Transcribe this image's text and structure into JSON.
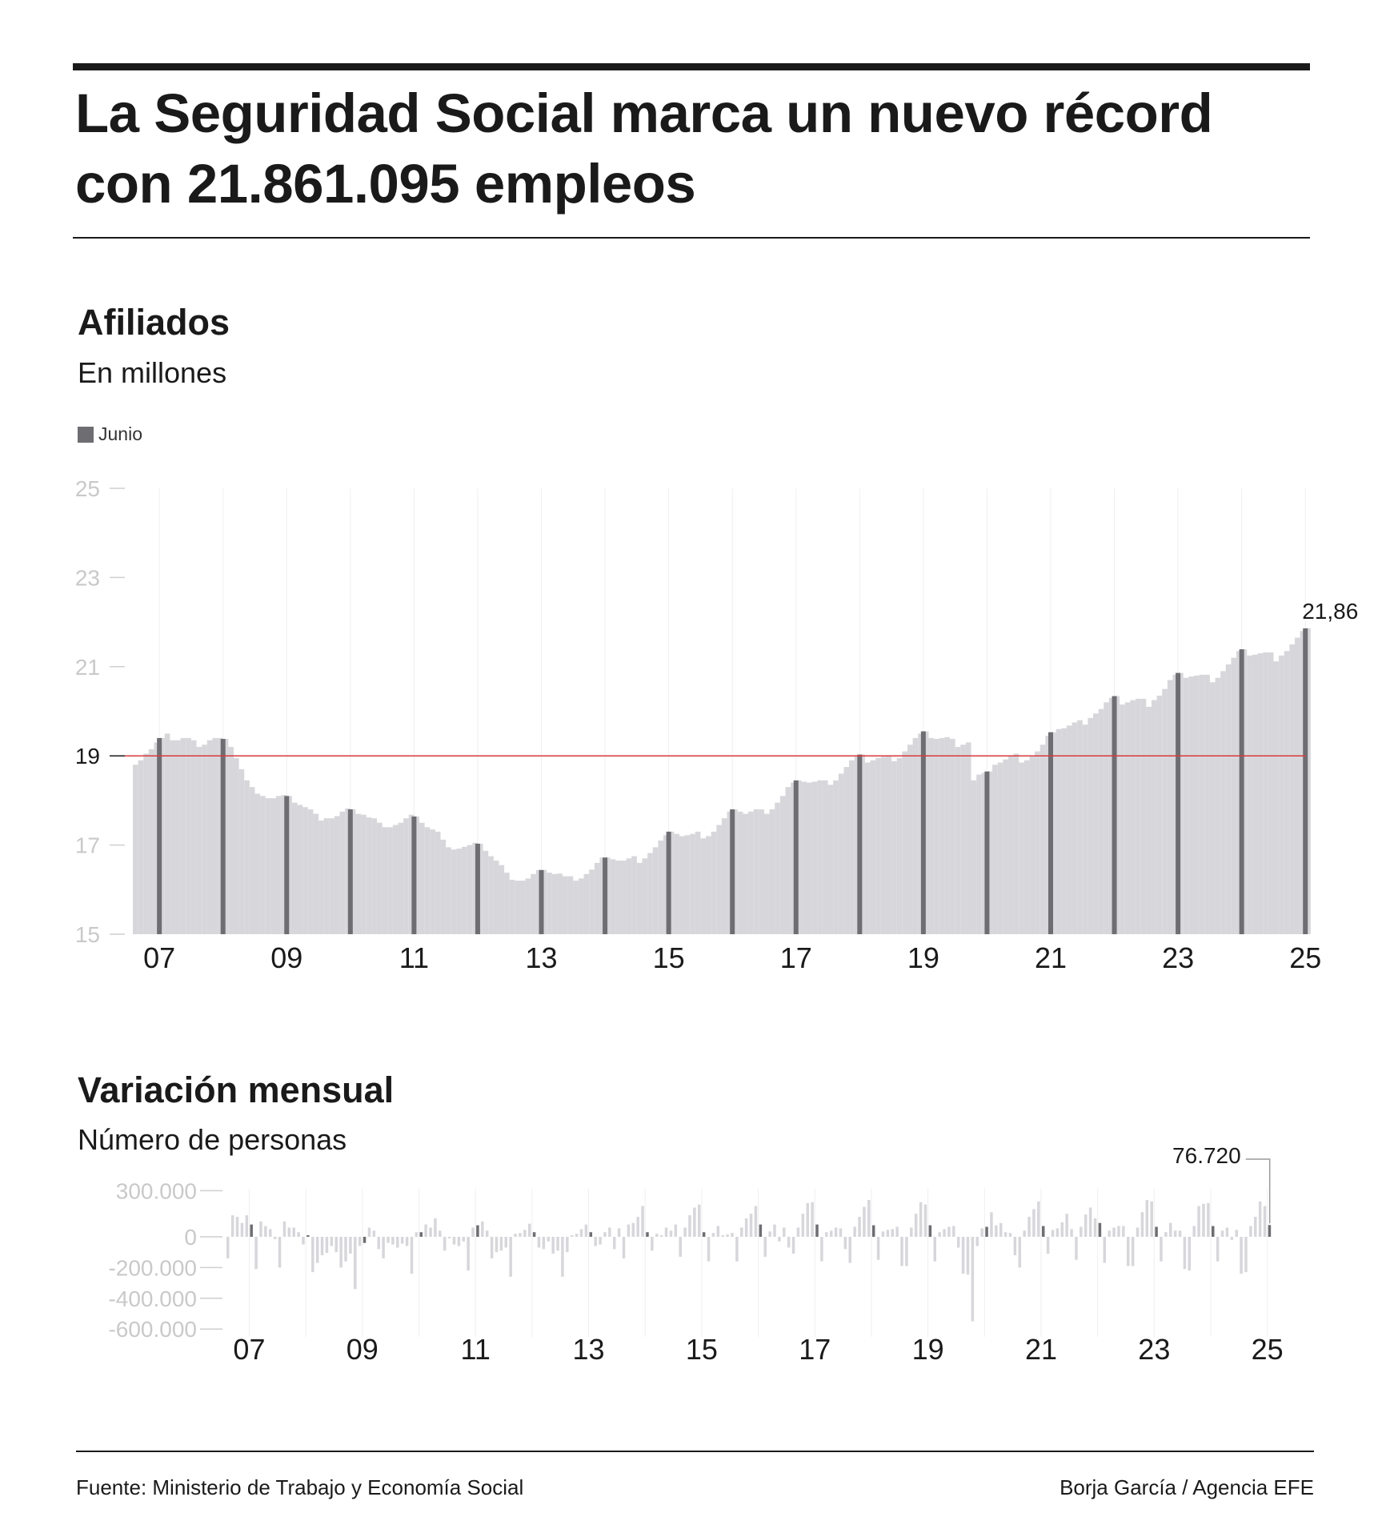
{
  "header": {
    "title": "La Seguridad Social marca un nuevo récord con 21.861.095 empleos"
  },
  "affiliates_section": {
    "title": "Afiliados",
    "subtitle": "En millones",
    "legend_label": "Junio"
  },
  "variation_section": {
    "title": "Variación mensual",
    "subtitle": "Número de personas"
  },
  "footer": {
    "source": "Fuente: Ministerio de Trabajo y Economía Social",
    "credit": "Borja García / Agencia EFE"
  },
  "colors": {
    "bar_light": "#d7d7db",
    "bar_highlight": "#6e6e72",
    "reference_line": "#d9393c",
    "axis_label": "#c9c9c9",
    "gridline": "#efefef"
  },
  "chart_data": [
    {
      "type": "bar",
      "title": "Afiliados",
      "subtitle": "En millones",
      "legend": [
        {
          "name": "Junio",
          "color": "#6e6e72"
        }
      ],
      "x_ticks": [
        "07",
        "09",
        "11",
        "13",
        "15",
        "17",
        "19",
        "21",
        "23",
        "25"
      ],
      "y_ticks": [
        15,
        17,
        19,
        21,
        23,
        25
      ],
      "ylim": [
        15,
        25
      ],
      "reference_line": 19,
      "first_month": "2007-01",
      "highlight_month": "June",
      "june_values": [
        {
          "year": "2007",
          "value": 19.4
        },
        {
          "year": "2008",
          "value": 19.38
        },
        {
          "year": "2009",
          "value": 18.1
        },
        {
          "year": "2010",
          "value": 17.8
        },
        {
          "year": "2011",
          "value": 17.64
        },
        {
          "year": "2012",
          "value": 17.03
        },
        {
          "year": "2013",
          "value": 16.44
        },
        {
          "year": "2014",
          "value": 16.72
        },
        {
          "year": "2015",
          "value": 17.3
        },
        {
          "year": "2016",
          "value": 17.8
        },
        {
          "year": "2017",
          "value": 18.45
        },
        {
          "year": "2018",
          "value": 19.03
        },
        {
          "year": "2019",
          "value": 19.55
        },
        {
          "year": "2020",
          "value": 18.65
        },
        {
          "year": "2021",
          "value": 19.53
        },
        {
          "year": "2022",
          "value": 20.34
        },
        {
          "year": "2023",
          "value": 20.86
        },
        {
          "year": "2024",
          "value": 21.39
        },
        {
          "year": "2025",
          "value": 21.86
        }
      ],
      "monthly_values": [
        18.8,
        18.9,
        19.05,
        19.15,
        19.3,
        19.4,
        19.5,
        19.35,
        19.35,
        19.4,
        19.4,
        19.35,
        19.2,
        19.25,
        19.35,
        19.4,
        19.4,
        19.38,
        19.2,
        18.95,
        18.7,
        18.45,
        18.3,
        18.15,
        18.1,
        18.05,
        18.05,
        18.1,
        18.12,
        18.1,
        17.95,
        17.9,
        17.85,
        17.8,
        17.7,
        17.55,
        17.6,
        17.6,
        17.65,
        17.75,
        17.82,
        17.8,
        17.7,
        17.68,
        17.62,
        17.6,
        17.5,
        17.4,
        17.4,
        17.45,
        17.5,
        17.6,
        17.68,
        17.64,
        17.5,
        17.4,
        17.35,
        17.3,
        17.12,
        16.95,
        16.9,
        16.92,
        16.96,
        17.0,
        17.05,
        17.03,
        16.87,
        16.75,
        16.65,
        16.55,
        16.38,
        16.22,
        16.2,
        16.2,
        16.25,
        16.35,
        16.44,
        16.44,
        16.38,
        16.35,
        16.36,
        16.3,
        16.3,
        16.2,
        16.25,
        16.35,
        16.45,
        16.6,
        16.72,
        16.72,
        16.68,
        16.65,
        16.65,
        16.7,
        16.75,
        16.6,
        16.7,
        16.82,
        16.95,
        17.1,
        17.22,
        17.3,
        17.25,
        17.2,
        17.22,
        17.25,
        17.3,
        17.15,
        17.2,
        17.3,
        17.45,
        17.6,
        17.75,
        17.8,
        17.75,
        17.7,
        17.75,
        17.8,
        17.8,
        17.7,
        17.8,
        17.95,
        18.1,
        18.3,
        18.4,
        18.45,
        18.42,
        18.4,
        18.42,
        18.45,
        18.45,
        18.35,
        18.45,
        18.6,
        18.75,
        18.9,
        19.0,
        19.03,
        18.85,
        18.9,
        18.95,
        18.98,
        19.0,
        18.88,
        18.95,
        19.1,
        19.25,
        19.4,
        19.5,
        19.55,
        19.4,
        19.38,
        19.4,
        19.42,
        19.38,
        19.2,
        19.25,
        19.3,
        18.45,
        18.58,
        18.62,
        18.65,
        18.8,
        18.85,
        18.92,
        19.0,
        19.05,
        18.85,
        18.9,
        19.0,
        19.1,
        19.25,
        19.45,
        19.53,
        19.6,
        19.62,
        19.68,
        19.75,
        19.8,
        19.7,
        19.85,
        19.95,
        20.05,
        20.2,
        20.3,
        20.34,
        20.15,
        20.2,
        20.25,
        20.28,
        20.28,
        20.1,
        20.25,
        20.35,
        20.5,
        20.7,
        20.82,
        20.86,
        20.75,
        20.78,
        20.8,
        20.82,
        20.82,
        20.65,
        20.75,
        20.9,
        21.05,
        21.2,
        21.35,
        21.39,
        21.25,
        21.27,
        21.3,
        21.32,
        21.32,
        21.12,
        21.25,
        21.35,
        21.5,
        21.65,
        21.8,
        21.86
      ],
      "annotation": {
        "label": "21,86",
        "value": 21.86
      }
    },
    {
      "type": "bar",
      "title": "Variación mensual",
      "subtitle": "Número de personas",
      "x_ticks": [
        "07",
        "09",
        "11",
        "13",
        "15",
        "17",
        "19",
        "21",
        "23",
        "25"
      ],
      "y_ticks": [
        {
          "value": 300000,
          "label": "300.000"
        },
        {
          "value": 0,
          "label": "0"
        },
        {
          "value": -200000,
          "label": "-200.000"
        },
        {
          "value": -400000,
          "label": "-400.000"
        },
        {
          "value": -600000,
          "label": "-600.000"
        }
      ],
      "ylim": [
        -600000,
        300000
      ],
      "first_month": "2007-01",
      "highlight_month": "June",
      "values": [
        -140000,
        140000,
        130000,
        90000,
        140000,
        80000,
        -210000,
        100000,
        70000,
        50000,
        -15000,
        -200000,
        100000,
        60000,
        60000,
        30000,
        -50000,
        10000,
        -230000,
        -170000,
        -120000,
        -105000,
        -60000,
        -100000,
        -200000,
        -160000,
        -110000,
        -340000,
        -60000,
        -40000,
        60000,
        40000,
        -80000,
        -140000,
        -40000,
        -50000,
        -70000,
        -45000,
        -60000,
        -240000,
        30000,
        30000,
        80000,
        60000,
        120000,
        40000,
        -90000,
        -10000,
        -50000,
        -60000,
        -30000,
        -220000,
        60000,
        75000,
        100000,
        40000,
        -140000,
        -100000,
        -90000,
        -70000,
        -260000,
        20000,
        25000,
        45000,
        85000,
        30000,
        -70000,
        -80000,
        -30000,
        -110000,
        -90000,
        -260000,
        -100000,
        10000,
        20000,
        50000,
        80000,
        30000,
        -60000,
        -50000,
        30000,
        60000,
        -80000,
        55000,
        -140000,
        80000,
        90000,
        130000,
        200000,
        30000,
        -90000,
        20000,
        10000,
        60000,
        40000,
        80000,
        -130000,
        60000,
        140000,
        190000,
        210000,
        30000,
        -160000,
        25000,
        70000,
        10000,
        15000,
        25000,
        -160000,
        60000,
        120000,
        150000,
        200000,
        80000,
        -130000,
        35000,
        80000,
        -30000,
        60000,
        -70000,
        -110000,
        60000,
        150000,
        220000,
        225000,
        80000,
        -160000,
        30000,
        40000,
        60000,
        55000,
        -80000,
        -170000,
        65000,
        130000,
        195000,
        240000,
        75000,
        -150000,
        35000,
        45000,
        50000,
        65000,
        -190000,
        -190000,
        60000,
        150000,
        225000,
        210000,
        75000,
        -160000,
        30000,
        50000,
        65000,
        70000,
        -70000,
        -240000,
        -245000,
        -550000,
        -60000,
        55000,
        65000,
        160000,
        75000,
        90000,
        30000,
        25000,
        -120000,
        -200000,
        40000,
        130000,
        180000,
        230000,
        70000,
        -110000,
        45000,
        55000,
        95000,
        150000,
        50000,
        -150000,
        65000,
        145000,
        190000,
        120000,
        90000,
        -170000,
        40000,
        60000,
        70000,
        70000,
        -190000,
        -190000,
        60000,
        160000,
        240000,
        230000,
        65000,
        -160000,
        30000,
        90000,
        40000,
        40000,
        -210000,
        -220000,
        70000,
        200000,
        215000,
        220000,
        70000,
        -160000,
        40000,
        60000,
        -20000,
        45000,
        -240000,
        -230000,
        70000,
        130000,
        230000,
        200000,
        76720
      ],
      "annotation": {
        "label": "76.720",
        "value": 76720
      }
    }
  ]
}
